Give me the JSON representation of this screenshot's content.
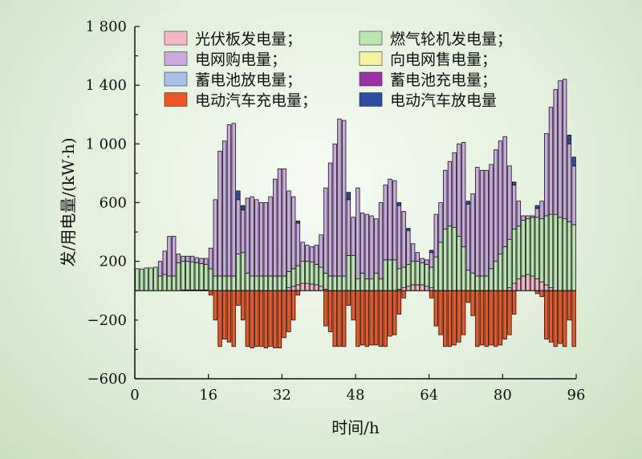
{
  "chart_data": {
    "type": "bar",
    "stacked": true,
    "xlabel": "时间/h",
    "ylabel": "发/用电量/(kW·h)",
    "xlim": [
      0,
      96
    ],
    "ylim": [
      -600,
      1800
    ],
    "xticks": [
      "0",
      "16",
      "32",
      "48",
      "64",
      "80",
      "96"
    ],
    "xtick_values": [
      0,
      16,
      32,
      48,
      64,
      80,
      96
    ],
    "yticks": [
      "1 800",
      "1 400",
      "1 000",
      "600",
      "200",
      "−200",
      "−600"
    ],
    "ytick_values": [
      1800,
      1400,
      1000,
      600,
      200,
      -200,
      -600
    ],
    "legend_position": "top",
    "legend": [
      {
        "key": "pv",
        "label": "光伏板发电量；",
        "color": "#f5b7c6"
      },
      {
        "key": "gas",
        "label": "燃气轮机发电量；",
        "color": "#b9e5b0"
      },
      {
        "key": "grid_buy",
        "label": "电网购电量；",
        "color": "#c9a9e0"
      },
      {
        "key": "grid_sell",
        "label": "向电网售电量；",
        "color": "#f2f2a0"
      },
      {
        "key": "bat_dis",
        "label": "蓄电池放电量；",
        "color": "#a9c1ea"
      },
      {
        "key": "bat_chg",
        "label": "蓄电池充电量；",
        "color": "#9b2fa3"
      },
      {
        "key": "ev_chg",
        "label": "电动汽车充电量；",
        "color": "#ef5423"
      },
      {
        "key": "ev_dis",
        "label": "电动汽车放电量",
        "color": "#2d4ca3"
      }
    ],
    "series": [
      {
        "key": "pv",
        "values": [
          0,
          0,
          0,
          0,
          0,
          0,
          0,
          0,
          0,
          0,
          5,
          5,
          5,
          5,
          5,
          5,
          0,
          0,
          0,
          0,
          0,
          0,
          0,
          0,
          0,
          0,
          0,
          0,
          0,
          0,
          0,
          0,
          0,
          20,
          30,
          40,
          50,
          50,
          45,
          40,
          30,
          10,
          0,
          0,
          0,
          0,
          0,
          0,
          0,
          0,
          0,
          0,
          0,
          0,
          0,
          0,
          0,
          10,
          20,
          30,
          40,
          40,
          40,
          30,
          20,
          0,
          0,
          0,
          0,
          0,
          0,
          0,
          0,
          0,
          0,
          0,
          0,
          0,
          0,
          0,
          0,
          20,
          50,
          80,
          100,
          110,
          100,
          80,
          60,
          40,
          20,
          0,
          0,
          0,
          0,
          0
        ]
      },
      {
        "key": "gas",
        "values": [
          150,
          148,
          155,
          155,
          160,
          100,
          110,
          100,
          100,
          190,
          195,
          195,
          190,
          185,
          180,
          175,
          150,
          100,
          100,
          100,
          100,
          100,
          250,
          260,
          120,
          100,
          100,
          100,
          100,
          100,
          100,
          100,
          100,
          110,
          120,
          130,
          150,
          150,
          150,
          140,
          130,
          110,
          100,
          100,
          100,
          100,
          240,
          240,
          80,
          120,
          80,
          80,
          120,
          80,
          210,
          210,
          210,
          140,
          140,
          150,
          160,
          160,
          150,
          150,
          140,
          230,
          330,
          420,
          440,
          430,
          370,
          300,
          140,
          120,
          100,
          100,
          100,
          150,
          200,
          250,
          300,
          330,
          370,
          360,
          380,
          380,
          400,
          420,
          430,
          470,
          500,
          520,
          500,
          490,
          470,
          450
        ]
      },
      {
        "key": "grid_buy",
        "values": [
          0,
          0,
          0,
          0,
          0,
          100,
          160,
          270,
          270,
          60,
          35,
          35,
          40,
          35,
          35,
          40,
          140,
          520,
          850,
          920,
          1030,
          1040,
          370,
          290,
          510,
          540,
          520,
          500,
          500,
          540,
          660,
          730,
          730,
          550,
          490,
          290,
          130,
          110,
          105,
          130,
          220,
          580,
          770,
          900,
          1070,
          1060,
          380,
          260,
          620,
          410,
          440,
          430,
          370,
          520,
          510,
          550,
          540,
          430,
          380,
          230,
          120,
          60,
          30,
          30,
          100,
          290,
          270,
          400,
          440,
          510,
          630,
          710,
          450,
          540,
          740,
          720,
          720,
          710,
          760,
          770,
          750,
          500,
          300,
          170,
          30,
          20,
          10,
          60,
          120,
          560,
          730,
          850,
          930,
          950,
          530,
          400
        ]
      },
      {
        "key": "ev_dis",
        "values": [
          0,
          0,
          0,
          0,
          0,
          0,
          0,
          0,
          0,
          0,
          0,
          0,
          0,
          0,
          0,
          0,
          0,
          0,
          0,
          0,
          0,
          0,
          60,
          30,
          0,
          0,
          0,
          0,
          0,
          0,
          0,
          0,
          0,
          0,
          0,
          15,
          0,
          0,
          0,
          0,
          0,
          0,
          0,
          0,
          0,
          0,
          50,
          0,
          0,
          0,
          0,
          0,
          0,
          0,
          0,
          0,
          0,
          20,
          0,
          15,
          0,
          0,
          0,
          0,
          15,
          0,
          0,
          0,
          0,
          0,
          0,
          0,
          20,
          0,
          0,
          0,
          0,
          0,
          0,
          0,
          0,
          0,
          20,
          0,
          0,
          0,
          0,
          20,
          0,
          0,
          0,
          0,
          0,
          0,
          60,
          60
        ]
      },
      {
        "key": "ev_chg",
        "values": [
          0,
          0,
          0,
          0,
          0,
          0,
          0,
          0,
          0,
          0,
          0,
          0,
          0,
          0,
          0,
          0,
          -30,
          -200,
          -380,
          -330,
          -350,
          -380,
          -100,
          -200,
          -380,
          -390,
          -380,
          -380,
          -390,
          -380,
          -390,
          -390,
          -320,
          -280,
          -200,
          -30,
          0,
          0,
          0,
          0,
          0,
          -240,
          -280,
          -380,
          -380,
          -380,
          -100,
          -200,
          -380,
          -370,
          -380,
          -370,
          -370,
          -380,
          -380,
          -310,
          -300,
          -160,
          -50,
          0,
          0,
          0,
          0,
          0,
          -50,
          -240,
          -300,
          -380,
          -380,
          -370,
          -350,
          -300,
          -80,
          -170,
          -380,
          -370,
          -380,
          -370,
          -380,
          -370,
          -330,
          -300,
          -160,
          0,
          0,
          0,
          0,
          -20,
          -40,
          -330,
          -350,
          -380,
          -360,
          -380,
          -200,
          -380
        ]
      }
    ]
  }
}
